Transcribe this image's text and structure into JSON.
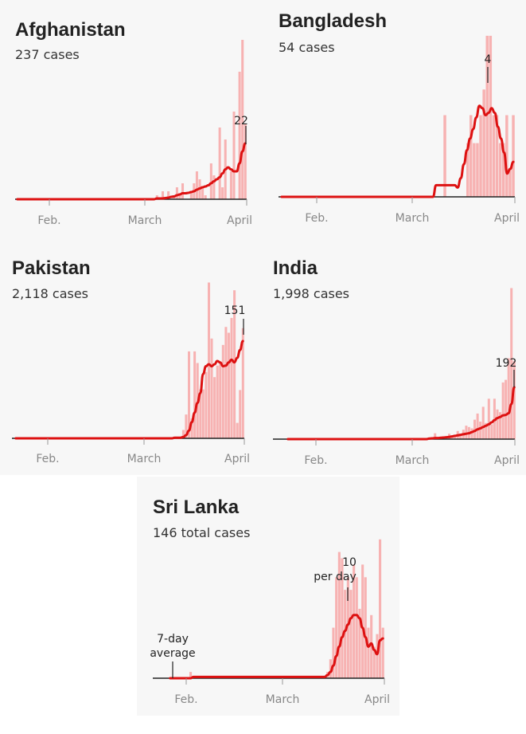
{
  "colors": {
    "bar": "#f7b2b2",
    "line": "#dd1111",
    "baseline": "#222222",
    "panel_bg": "#f7f7f7"
  },
  "chart_data": [
    {
      "type": "bar",
      "title": "Afghanistan",
      "subtitle": "237 cases",
      "xticks": [
        "Feb.",
        "March",
        "April"
      ],
      "xlim": [
        0,
        66
      ],
      "ylim": [
        0,
        40
      ],
      "series": [
        {
          "values": [
            0,
            0,
            0,
            0,
            0,
            0,
            0,
            0,
            0,
            0,
            0,
            0,
            0,
            0,
            0,
            0,
            0,
            0,
            0,
            0,
            0,
            0,
            0,
            0,
            0,
            0,
            0,
            0,
            0,
            0,
            0,
            0,
            0,
            0,
            0,
            0,
            0,
            0,
            0,
            0,
            0,
            0,
            0,
            0,
            0,
            0,
            0,
            0,
            0,
            1,
            0,
            2,
            0,
            2,
            0,
            1,
            3,
            1,
            4,
            0,
            0,
            2,
            4,
            7,
            5,
            3,
            1,
            0,
            9,
            6,
            0,
            18,
            3,
            15,
            0,
            7,
            22,
            0,
            32,
            40,
            19
          ]
        },
        {
          "values": [
            0,
            0,
            0,
            0,
            0,
            0,
            0,
            0,
            0,
            0,
            0,
            0,
            0,
            0,
            0,
            0,
            0,
            0,
            0,
            0,
            0,
            0,
            0,
            0,
            0,
            0,
            0,
            0,
            0,
            0,
            0,
            0,
            0,
            0,
            0,
            0,
            0,
            0,
            0,
            0,
            0,
            0,
            0,
            0,
            0,
            0,
            0,
            0,
            0,
            0.2,
            0.2,
            0.2,
            0.3,
            0.4,
            0.6,
            0.7,
            1,
            1.2,
            1.5,
            1.5,
            1.6,
            1.8,
            2,
            2.4,
            2.7,
            3,
            3.2,
            3.5,
            4,
            4.5,
            5,
            5.5,
            6.5,
            7.5,
            8,
            7.5,
            7,
            7,
            9,
            12,
            14
          ]
        }
      ],
      "annotations": [
        {
          "label": "22"
        }
      ]
    },
    {
      "type": "bar",
      "title": "Bangladesh",
      "subtitle": "54 cases",
      "xticks": [
        "Feb.",
        "March",
        "April"
      ],
      "xlim": [
        0,
        68
      ],
      "ylim": [
        0,
        7
      ],
      "series": [
        {
          "values": [
            0,
            0,
            0,
            0,
            0,
            0,
            0,
            0,
            0,
            0,
            0,
            0,
            0,
            0,
            0,
            0,
            0,
            0,
            0,
            0,
            0,
            0,
            0,
            0,
            0,
            0,
            0,
            0,
            0,
            0,
            0,
            0,
            0,
            0,
            0,
            0,
            0,
            0,
            0,
            0,
            0,
            0,
            0,
            0,
            0,
            0,
            0,
            0,
            0,
            0,
            3.5,
            0,
            0,
            0,
            0,
            0,
            0,
            2.3,
            3.5,
            2.3,
            2.3,
            3.5,
            4.6,
            6.9,
            6.9,
            3.5,
            3.5,
            2.3,
            2.3,
            3.5,
            1.2,
            3.5
          ]
        },
        {
          "values": [
            0,
            0,
            0,
            0,
            0,
            0,
            0,
            0,
            0,
            0,
            0,
            0,
            0,
            0,
            0,
            0,
            0,
            0,
            0,
            0,
            0,
            0,
            0,
            0,
            0,
            0,
            0,
            0,
            0,
            0,
            0,
            0,
            0,
            0,
            0,
            0,
            0,
            0,
            0,
            0,
            0,
            0,
            0,
            0,
            0,
            0,
            0,
            0,
            0,
            0,
            0.5,
            0.5,
            0.5,
            0.5,
            0.5,
            0.5,
            0.5,
            0.4,
            0.8,
            1.4,
            2,
            2.5,
            2.9,
            3.4,
            3.9,
            3.8,
            3.5,
            3.6,
            3.8,
            3.6,
            3,
            2.5,
            1.9,
            1,
            1.2,
            1.5
          ]
        }
      ],
      "annotations": [
        {
          "label": "4"
        }
      ]
    },
    {
      "type": "bar",
      "title": "Pakistan",
      "subtitle": "2,118 cases",
      "xticks": [
        "Feb.",
        "March",
        "April"
      ],
      "xlim": [
        0,
        66
      ],
      "ylim": [
        0,
        250
      ],
      "series": [
        {
          "values": [
            0,
            0,
            0,
            0,
            0,
            0,
            0,
            0,
            0,
            0,
            0,
            0,
            0,
            0,
            0,
            0,
            0,
            0,
            0,
            0,
            0,
            0,
            0,
            0,
            0,
            0,
            0,
            0,
            0,
            0,
            0,
            0,
            0,
            0,
            0,
            0,
            0,
            0,
            0,
            0,
            0,
            0,
            0,
            0,
            0,
            0,
            0,
            0,
            0,
            0,
            0,
            0,
            0,
            0,
            0,
            0,
            2,
            0,
            0,
            13,
            37,
            135,
            31,
            135,
            117,
            76,
            76,
            103,
            242,
            155,
            95,
            113,
            118,
            145,
            173,
            164,
            187,
            230,
            24,
            75,
            171
          ]
        },
        {
          "values": [
            0,
            0,
            0,
            0,
            0,
            0,
            0,
            0,
            0,
            0,
            0,
            0,
            0,
            0,
            0,
            0,
            0,
            0,
            0,
            0,
            0,
            0,
            0,
            0,
            0,
            0,
            0,
            0,
            0,
            0,
            0,
            0,
            0,
            0,
            0,
            0,
            0,
            0,
            0,
            0,
            0,
            0,
            0,
            0,
            0,
            0,
            0,
            0,
            0,
            0,
            0,
            0,
            0,
            0,
            0,
            0,
            1,
            1,
            1,
            2,
            5,
            12,
            25,
            40,
            55,
            70,
            100,
            112,
            115,
            112,
            115,
            120,
            118,
            112,
            113,
            118,
            122,
            118,
            125,
            137,
            151
          ]
        }
      ],
      "annotations": [
        {
          "label": "151"
        }
      ]
    },
    {
      "type": "bar",
      "title": "India",
      "subtitle": "1,998 cases",
      "xticks": [
        "Feb.",
        "March",
        "April"
      ],
      "xlim": [
        0,
        66
      ],
      "ylim": [
        0,
        600
      ],
      "series": [
        {
          "values": [
            0,
            0,
            0,
            0,
            0,
            0,
            0,
            0,
            0,
            0,
            0,
            0,
            0,
            0,
            0,
            0,
            0,
            0,
            0,
            0,
            0,
            0,
            0,
            0,
            0,
            0,
            0,
            0,
            0,
            0,
            0,
            0,
            0,
            0,
            0,
            0,
            0,
            0,
            0,
            0,
            0,
            0,
            0,
            0,
            0,
            0,
            0,
            0,
            0,
            0,
            2,
            0,
            22,
            0,
            0,
            10,
            10,
            20,
            12,
            13,
            30,
            20,
            35,
            50,
            45,
            40,
            72,
            95,
            65,
            120,
            60,
            150,
            55,
            150,
            110,
            100,
            210,
            220,
            300,
            560,
            290
          ]
        },
        {
          "values": [
            0,
            0,
            0,
            0,
            0,
            0,
            0,
            0,
            0,
            0,
            0,
            0,
            0,
            0,
            0,
            0,
            0,
            0,
            0,
            0,
            0,
            0,
            0,
            0,
            0,
            0,
            0,
            0,
            0,
            0,
            0,
            0,
            0,
            0,
            0,
            0,
            0,
            0,
            0,
            0,
            0,
            0,
            0,
            0,
            0,
            0,
            0,
            0,
            0,
            0,
            2,
            3,
            4,
            4,
            5,
            6,
            7,
            8,
            10,
            12,
            14,
            16,
            18,
            20,
            22,
            26,
            30,
            36,
            40,
            45,
            50,
            55,
            62,
            70,
            78,
            82,
            88,
            90,
            96,
            130,
            192
          ]
        }
      ],
      "annotations": [
        {
          "label": "192"
        }
      ]
    },
    {
      "type": "bar",
      "title": "Sri Lanka",
      "subtitle": "146 total cases",
      "xticks": [
        "Feb.",
        "March",
        "April"
      ],
      "xlim": [
        0,
        66
      ],
      "ylim": [
        0,
        25
      ],
      "series": [
        {
          "values": [
            0,
            0,
            0,
            0,
            0,
            0,
            0,
            1,
            0,
            0,
            0,
            0,
            0,
            0,
            0,
            0,
            0,
            0,
            0,
            0,
            0,
            0,
            0,
            0,
            0,
            0,
            0,
            0,
            0,
            0,
            0,
            0,
            0,
            0,
            0,
            0,
            0,
            0,
            0,
            0,
            0,
            0,
            0,
            0,
            0,
            0,
            0,
            0,
            0,
            0,
            0,
            0,
            0,
            0,
            1,
            3,
            8,
            16,
            20,
            19,
            14,
            16,
            14,
            18,
            16,
            11,
            18,
            16,
            8,
            10,
            5,
            7,
            22,
            8
          ]
        },
        {
          "values": [
            0,
            0,
            0,
            0,
            0,
            0,
            0,
            0,
            0.2,
            0.2,
            0.2,
            0.2,
            0.2,
            0.2,
            0.2,
            0.2,
            0.2,
            0.2,
            0.2,
            0.2,
            0.2,
            0.2,
            0.2,
            0.2,
            0.2,
            0.2,
            0.2,
            0.2,
            0.2,
            0.2,
            0.2,
            0.2,
            0.2,
            0.2,
            0.2,
            0.2,
            0.2,
            0.2,
            0.2,
            0.2,
            0.2,
            0.2,
            0.2,
            0.2,
            0.2,
            0.2,
            0.2,
            0.2,
            0.2,
            0.2,
            0.2,
            0.2,
            0.2,
            0.2,
            0.5,
            1,
            2,
            3.5,
            5,
            6.5,
            7.5,
            8.5,
            9.5,
            10,
            10,
            9.5,
            8,
            6.5,
            5,
            5.5,
            4.5,
            3.8,
            6,
            6.3
          ]
        }
      ],
      "annotations": [
        {
          "label": "10"
        },
        {
          "label": "per day"
        },
        {
          "label": "7-day"
        },
        {
          "label": "average"
        }
      ]
    }
  ]
}
